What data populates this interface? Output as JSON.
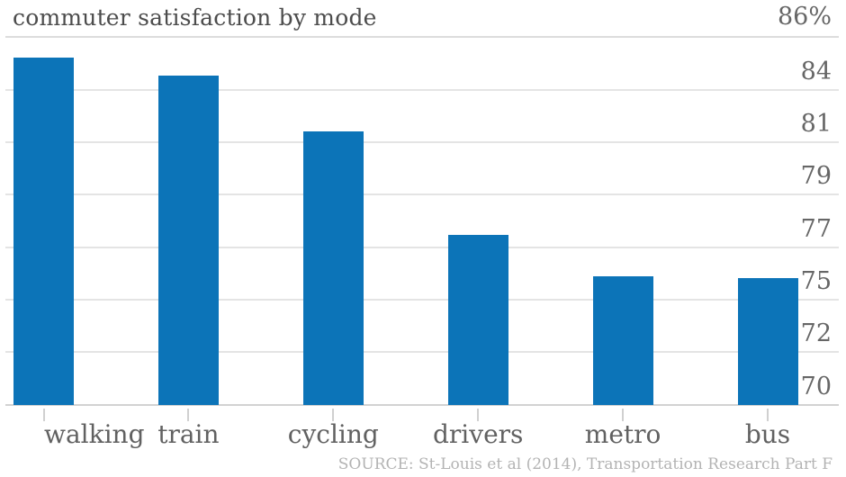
{
  "chart_data": {
    "type": "bar",
    "title": "commuter satisfaction by mode",
    "unit_label": "86%",
    "categories": [
      "walking",
      "train",
      "cycling",
      "drivers",
      "metro",
      "bus"
    ],
    "values": [
      85.1,
      84.3,
      81.9,
      77.4,
      75.6,
      75.5
    ],
    "y_axis": {
      "side": "right",
      "min": 70,
      "max": 86,
      "tick_labels": [
        "86%",
        "84",
        "81",
        "79",
        "77",
        "75",
        "72",
        "70"
      ],
      "tick_values": [
        86,
        83.71,
        81.43,
        79.14,
        76.86,
        74.57,
        72.29,
        70
      ]
    },
    "grid": "on",
    "legend": "none",
    "bar_color": "#0c74b8",
    "source": "SOURCE: St-Louis et al (2014), Transportation Research Part F"
  },
  "colors": {
    "bar": "#0c74b8",
    "title_text": "#4c4c4c",
    "axis_text": "#666666",
    "category_text": "#616161",
    "source_text": "#b3b3b3",
    "gridline": "#e4e4e4",
    "baseline": "#d2d2d2"
  }
}
